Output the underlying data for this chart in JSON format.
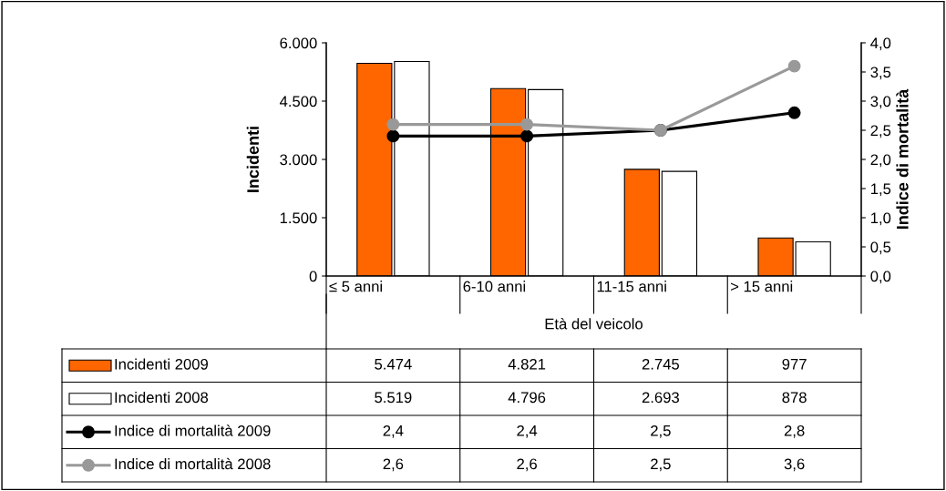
{
  "chart_data": {
    "type": "bar",
    "xlabel": "Età del veicolo",
    "ylabel": "Incidenti",
    "y2label": "Indice di mortalità",
    "categories": [
      "≤ 5 anni",
      "6-10 anni",
      "11-15 anni",
      "> 15 anni"
    ],
    "series": [
      {
        "name": "Incidenti 2009",
        "color": "#ff6600",
        "values": [
          5474,
          4821,
          2745,
          977
        ],
        "value_labels": [
          "5.474",
          "4.821",
          "2.745",
          "977"
        ]
      },
      {
        "name": "Incidenti 2008",
        "color": "#ffffff",
        "values": [
          5519,
          4796,
          2693,
          878
        ],
        "value_labels": [
          "5.519",
          "4.796",
          "2.693",
          "878"
        ]
      },
      {
        "name": "Indice di mortalità 2009",
        "type": "line",
        "axis": "y2",
        "color": "#000000",
        "values": [
          2.4,
          2.4,
          2.5,
          2.8
        ],
        "value_labels": [
          "2,4",
          "2,4",
          "2,5",
          "2,8"
        ]
      },
      {
        "name": "Indice di mortalità 2008",
        "type": "line",
        "axis": "y2",
        "color": "#999999",
        "values": [
          2.6,
          2.6,
          2.5,
          3.6
        ],
        "value_labels": [
          "2,6",
          "2,6",
          "2,5",
          "3,6"
        ]
      }
    ],
    "ylim": [
      0,
      6000
    ],
    "yticks": [
      {
        "value": 0,
        "label": "0"
      },
      {
        "value": 1500,
        "label": "1.500"
      },
      {
        "value": 3000,
        "label": "3.000"
      },
      {
        "value": 4500,
        "label": "4.500"
      },
      {
        "value": 6000,
        "label": "6.000"
      }
    ],
    "y2lim": [
      0,
      4
    ],
    "y2ticks": [
      {
        "value": 0,
        "label": "0,0"
      },
      {
        "value": 0.5,
        "label": "0,5"
      },
      {
        "value": 1,
        "label": "1,0"
      },
      {
        "value": 1.5,
        "label": "1,5"
      },
      {
        "value": 2,
        "label": "2,0"
      },
      {
        "value": 2.5,
        "label": "2,5"
      },
      {
        "value": 3,
        "label": "3,0"
      },
      {
        "value": 3.5,
        "label": "3,5"
      },
      {
        "value": 4,
        "label": "4,0"
      }
    ],
    "marker": "circle",
    "line_style": "solid",
    "grid": false,
    "legend": "bottom"
  }
}
